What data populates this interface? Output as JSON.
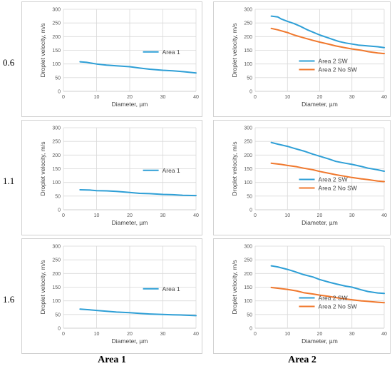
{
  "row_labels": [
    "0.6",
    "1.1",
    "1.6"
  ],
  "column_labels": [
    "Area 1",
    "Area 2"
  ],
  "colors": {
    "sw": "#2e9fd6",
    "nosw": "#f0782d",
    "grid": "#d9d9d9",
    "axis": "#bfbfbf"
  },
  "chart_data": [
    {
      "type": "line",
      "row_label": "0.6",
      "column_label": "Area 1",
      "xlabel": "Diameter, µm",
      "ylabel": "Droplet velocity, m/s",
      "xlim": [
        0,
        40
      ],
      "ylim": [
        0,
        300
      ],
      "xticks": [
        0,
        10,
        20,
        30,
        40
      ],
      "yticks": [
        0,
        50,
        100,
        150,
        200,
        250,
        300
      ],
      "grid": true,
      "legend_position": "right",
      "series": [
        {
          "name": "Area 1",
          "color": "#2e9fd6",
          "x": [
            5,
            7,
            10,
            13,
            16,
            20,
            23,
            26,
            30,
            33,
            36,
            40
          ],
          "y": [
            108,
            106,
            100,
            96,
            93,
            90,
            85,
            81,
            77,
            75,
            72,
            67
          ]
        }
      ]
    },
    {
      "type": "line",
      "row_label": "0.6",
      "column_label": "Area 2",
      "xlabel": "Diameter, µm",
      "ylabel": "Droplet velocity, m/s",
      "xlim": [
        0,
        40
      ],
      "ylim": [
        0,
        300
      ],
      "xticks": [
        0,
        10,
        20,
        30,
        40
      ],
      "yticks": [
        0,
        50,
        100,
        150,
        200,
        250,
        300
      ],
      "grid": true,
      "legend_position": "bottom-right",
      "series": [
        {
          "name": "Area 2 SW",
          "color": "#2e9fd6",
          "x": [
            5,
            7,
            8,
            10,
            12,
            14,
            16,
            18,
            20,
            22,
            24,
            26,
            28,
            30,
            32,
            35,
            38,
            40
          ],
          "y": [
            275,
            272,
            265,
            256,
            248,
            238,
            226,
            216,
            206,
            198,
            190,
            182,
            177,
            173,
            169,
            166,
            163,
            160
          ]
        },
        {
          "name": "Area 2 No SW",
          "color": "#f0782d",
          "x": [
            5,
            7,
            10,
            12,
            15,
            18,
            20,
            23,
            25,
            28,
            30,
            33,
            35,
            38,
            40
          ],
          "y": [
            230,
            225,
            215,
            206,
            196,
            186,
            180,
            172,
            166,
            159,
            155,
            150,
            145,
            140,
            138
          ]
        }
      ]
    },
    {
      "type": "line",
      "row_label": "1.1",
      "column_label": "Area 1",
      "xlabel": "Diameter, µm",
      "ylabel": "Droplet velocity, m/s",
      "xlim": [
        0,
        40
      ],
      "ylim": [
        0,
        300
      ],
      "xticks": [
        0,
        10,
        20,
        30,
        40
      ],
      "yticks": [
        0,
        50,
        100,
        150,
        200,
        250,
        300
      ],
      "grid": true,
      "legend_position": "right",
      "series": [
        {
          "name": "Area 1",
          "color": "#2e9fd6",
          "x": [
            5,
            8,
            10,
            13,
            16,
            20,
            23,
            26,
            30,
            33,
            36,
            40
          ],
          "y": [
            73,
            72,
            70,
            69,
            67,
            63,
            60,
            59,
            56,
            55,
            53,
            52
          ]
        }
      ]
    },
    {
      "type": "line",
      "row_label": "1.1",
      "column_label": "Area 2",
      "xlabel": "Diameter, µm",
      "ylabel": "Droplet velocity, m/s",
      "xlim": [
        0,
        40
      ],
      "ylim": [
        0,
        300
      ],
      "xticks": [
        0,
        10,
        20,
        30,
        40
      ],
      "yticks": [
        0,
        50,
        100,
        150,
        200,
        250,
        300
      ],
      "grid": true,
      "legend_position": "bottom-right",
      "series": [
        {
          "name": "Area 2 SW",
          "color": "#2e9fd6",
          "x": [
            5,
            7,
            10,
            12,
            15,
            18,
            20,
            23,
            25,
            28,
            30,
            33,
            35,
            38,
            40
          ],
          "y": [
            246,
            240,
            232,
            225,
            215,
            203,
            196,
            185,
            177,
            170,
            166,
            158,
            152,
            146,
            141
          ]
        },
        {
          "name": "Area 2 No SW",
          "color": "#f0782d",
          "x": [
            5,
            8,
            10,
            13,
            15,
            18,
            20,
            23,
            25,
            28,
            30,
            33,
            35,
            38,
            40
          ],
          "y": [
            170,
            166,
            162,
            157,
            152,
            146,
            140,
            133,
            128,
            122,
            118,
            113,
            110,
            105,
            103
          ]
        }
      ]
    },
    {
      "type": "line",
      "row_label": "1.6",
      "column_label": "Area 1",
      "xlabel": "Diameter, µm",
      "ylabel": "Droplet velocity, m/s",
      "xlim": [
        0,
        40
      ],
      "ylim": [
        0,
        300
      ],
      "xticks": [
        0,
        10,
        20,
        30,
        40
      ],
      "yticks": [
        0,
        50,
        100,
        150,
        200,
        250,
        300
      ],
      "grid": true,
      "legend_position": "right",
      "series": [
        {
          "name": "Area 1",
          "color": "#2e9fd6",
          "x": [
            5,
            8,
            10,
            13,
            16,
            20,
            23,
            26,
            30,
            33,
            36,
            40
          ],
          "y": [
            70,
            67,
            65,
            62,
            59,
            57,
            54,
            52,
            50,
            49,
            48,
            46
          ]
        }
      ]
    },
    {
      "type": "line",
      "row_label": "1.6",
      "column_label": "Area 2",
      "xlabel": "Diameter, µm",
      "ylabel": "Droplet velocity, m/s",
      "xlim": [
        0,
        40
      ],
      "ylim": [
        0,
        300
      ],
      "xticks": [
        0,
        10,
        20,
        30,
        40
      ],
      "yticks": [
        0,
        50,
        100,
        150,
        200,
        250,
        300
      ],
      "grid": true,
      "legend_position": "bottom-right",
      "series": [
        {
          "name": "Area 2 SW",
          "color": "#2e9fd6",
          "x": [
            5,
            7,
            10,
            12,
            15,
            18,
            20,
            23,
            25,
            28,
            30,
            33,
            35,
            38,
            40
          ],
          "y": [
            228,
            224,
            215,
            208,
            196,
            187,
            178,
            168,
            162,
            154,
            150,
            140,
            134,
            129,
            127
          ]
        },
        {
          "name": "Area 2 No SW",
          "color": "#f0782d",
          "x": [
            5,
            7,
            10,
            13,
            15,
            18,
            20,
            23,
            25,
            28,
            30,
            33,
            35,
            38,
            40
          ],
          "y": [
            149,
            146,
            142,
            136,
            130,
            125,
            121,
            116,
            112,
            107,
            104,
            100,
            98,
            95,
            93
          ]
        }
      ]
    }
  ]
}
